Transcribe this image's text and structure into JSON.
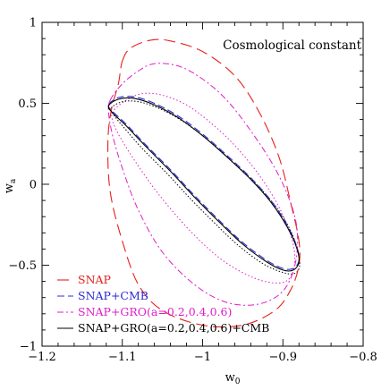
{
  "chart_data": {
    "type": "line",
    "title": "Cosmological constant",
    "xlabel_main": "w",
    "xlabel_sub": "0",
    "ylabel_main": "w",
    "ylabel_sub": "a",
    "xlim": [
      -1.2,
      -0.8
    ],
    "ylim": [
      -1,
      1
    ],
    "x_major_ticks": [
      -1.2,
      -1.1,
      -1.0,
      -0.9,
      -0.8
    ],
    "x_tick_labels": [
      "−1.2",
      "−1.1",
      "−1",
      "−0.9",
      "−0.8"
    ],
    "y_major_ticks": [
      -1,
      -0.5,
      0,
      0.5,
      1
    ],
    "y_tick_labels": [
      "−1",
      "−0.5",
      "0",
      "0.5",
      "1"
    ],
    "x_minor_step": 0.02,
    "y_minor_step": 0.1,
    "grid": false,
    "legend_position": "bottom-left",
    "series": [
      {
        "name": "SNAP",
        "color": "#e8201c",
        "dash": "13,6",
        "width": 1.1,
        "x": [
          -1.1,
          -1.09,
          -1.065,
          -1.04,
          -1.0,
          -0.96,
          -0.93,
          -0.905,
          -0.89,
          -0.88,
          -0.88,
          -0.89,
          -0.91,
          -0.95,
          -1.0,
          -1.05,
          -1.08,
          -1.1,
          -1.115,
          -1.118,
          -1.114,
          -1.105,
          -1.1
        ],
        "y": [
          0.76,
          0.84,
          0.89,
          0.885,
          0.82,
          0.67,
          0.45,
          0.17,
          -0.12,
          -0.35,
          -0.5,
          -0.65,
          -0.78,
          -0.87,
          -0.87,
          -0.78,
          -0.62,
          -0.35,
          -0.05,
          0.25,
          0.45,
          0.62,
          0.76
        ]
      },
      {
        "name": "SNAP+CMB",
        "color": "#2b2bd6",
        "dash": "8,4",
        "width": 1.1,
        "x": [
          -1.117,
          -1.105,
          -1.085,
          -1.06,
          -1.03,
          -1.0,
          -0.97,
          -0.94,
          -0.915,
          -0.895,
          -0.883,
          -0.88,
          -0.887,
          -0.9,
          -0.92,
          -0.95,
          -0.98,
          -1.01,
          -1.04,
          -1.07,
          -1.095,
          -1.112,
          -1.117
        ],
        "y": [
          0.49,
          0.535,
          0.54,
          0.5,
          0.42,
          0.31,
          0.18,
          0.04,
          -0.1,
          -0.25,
          -0.38,
          -0.47,
          -0.52,
          -0.52,
          -0.47,
          -0.36,
          -0.22,
          -0.07,
          0.09,
          0.24,
          0.37,
          0.45,
          0.49
        ]
      },
      {
        "name": "SNAP+GRO(a=0.2,0.4,0.6)",
        "color": "#e01ec8",
        "dash": "7,3,2,3",
        "width": 1.0,
        "x": [
          -1.115,
          -1.1,
          -1.08,
          -1.06,
          -1.03,
          -1.0,
          -0.97,
          -0.94,
          -0.91,
          -0.89,
          -0.882,
          -0.885,
          -0.9,
          -0.93,
          -0.97,
          -1.01,
          -1.05,
          -1.08,
          -1.1,
          -1.112,
          -1.117,
          -1.115
        ],
        "y": [
          0.52,
          0.62,
          0.7,
          0.745,
          0.73,
          0.65,
          0.52,
          0.33,
          0.1,
          -0.12,
          -0.3,
          -0.5,
          -0.66,
          -0.74,
          -0.73,
          -0.62,
          -0.42,
          -0.16,
          0.1,
          0.3,
          0.44,
          0.52
        ]
      },
      {
        "name": "SNAP+GRO(a=0.2,0.4,0.6)+CMB",
        "color": "#000000",
        "dash": "",
        "width": 1.1,
        "x": [
          -1.117,
          -1.105,
          -1.085,
          -1.06,
          -1.03,
          -1.0,
          -0.97,
          -0.94,
          -0.915,
          -0.895,
          -0.883,
          -0.88,
          -0.887,
          -0.9,
          -0.92,
          -0.95,
          -0.98,
          -1.01,
          -1.04,
          -1.07,
          -1.095,
          -1.112,
          -1.117
        ],
        "y": [
          0.485,
          0.525,
          0.53,
          0.49,
          0.41,
          0.3,
          0.17,
          0.03,
          -0.11,
          -0.26,
          -0.39,
          -0.48,
          -0.53,
          -0.53,
          -0.48,
          -0.37,
          -0.23,
          -0.08,
          0.08,
          0.23,
          0.36,
          0.44,
          0.485
        ]
      }
    ],
    "extra_contours": [
      {
        "color": "#e01ec8",
        "dash": "1.5,2.5",
        "width": 1.0,
        "x": [
          -1.11,
          -1.095,
          -1.075,
          -1.05,
          -1.02,
          -0.99,
          -0.96,
          -0.93,
          -0.905,
          -0.89,
          -0.885,
          -0.89,
          -0.905,
          -0.935,
          -0.975,
          -1.015,
          -1.055,
          -1.085,
          -1.105,
          -1.113,
          -1.11
        ],
        "y": [
          0.46,
          0.52,
          0.56,
          0.55,
          0.49,
          0.38,
          0.24,
          0.06,
          -0.14,
          -0.32,
          -0.46,
          -0.57,
          -0.61,
          -0.58,
          -0.47,
          -0.29,
          -0.06,
          0.15,
          0.31,
          0.41,
          0.46
        ]
      },
      {
        "color": "#000000",
        "dash": "1.5,2",
        "width": 1.0,
        "x": [
          -1.114,
          -1.1,
          -1.08,
          -1.055,
          -1.025,
          -0.995,
          -0.965,
          -0.935,
          -0.91,
          -0.892,
          -0.882,
          -0.879,
          -0.885,
          -0.9,
          -0.925,
          -0.955,
          -0.985,
          -1.015,
          -1.045,
          -1.075,
          -1.098,
          -1.111,
          -1.114
        ],
        "y": [
          0.47,
          0.51,
          0.51,
          0.47,
          0.39,
          0.28,
          0.15,
          0.01,
          -0.13,
          -0.27,
          -0.4,
          -0.5,
          -0.55,
          -0.545,
          -0.49,
          -0.38,
          -0.24,
          -0.09,
          0.07,
          0.22,
          0.35,
          0.43,
          0.47
        ]
      }
    ]
  }
}
